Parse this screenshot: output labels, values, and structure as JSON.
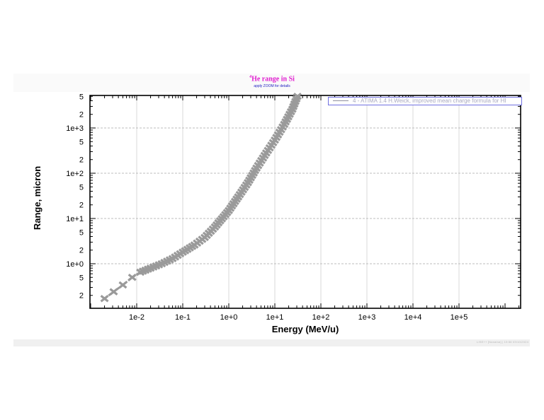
{
  "header": {
    "title_sup": "4",
    "title": "He range in Si",
    "subtitle": "apply ZOOM for details"
  },
  "footer": {
    "text": "LISE++ [Nanaina]  |  19:56 03/10/2024"
  },
  "legend": {
    "entries": [
      {
        "label": "4 - ATIMA 1.4 H.Weick, improved mean charge formula for HI",
        "color": "#9a9a9a"
      }
    ]
  },
  "axes": {
    "xlabel": "Energy (MeV/u)",
    "ylabel": "Range, micron",
    "x_ticks": [
      "1e-2",
      "1e-1",
      "1e+0",
      "1e+1",
      "1e+2",
      "1e+3",
      "1e+4",
      "1e+5"
    ],
    "y_ticks": [
      {
        "label": "5",
        "value": 5000
      },
      {
        "label": "2",
        "value": 2000
      },
      {
        "label": "1e+3",
        "value": 1000
      },
      {
        "label": "5",
        "value": 500
      },
      {
        "label": "2",
        "value": 200
      },
      {
        "label": "1e+2",
        "value": 100
      },
      {
        "label": "5",
        "value": 50
      },
      {
        "label": "2",
        "value": 20
      },
      {
        "label": "1e+1",
        "value": 10
      },
      {
        "label": "5",
        "value": 5
      },
      {
        "label": "2",
        "value": 2
      },
      {
        "label": "1e+0",
        "value": 1
      },
      {
        "label": "5",
        "value": 0.5
      },
      {
        "label": "2",
        "value": 0.2
      }
    ]
  },
  "chart_data": {
    "type": "line",
    "title": "4He range in Si",
    "subtitle": "apply ZOOM for details",
    "xlabel": "Energy (MeV/u)",
    "ylabel": "Range, micron",
    "xscale": "log",
    "yscale": "log",
    "xlim": [
      0.001,
      2000000
    ],
    "ylim": [
      0.1,
      5500
    ],
    "grid": true,
    "legend_position": "top-right",
    "series": [
      {
        "name": "4 - ATIMA 1.4 H.Weick, improved mean charge formula for HI",
        "color": "#9a9a9a",
        "marker": "x",
        "x": [
          0.002,
          0.005,
          0.008,
          0.012,
          0.02,
          0.035,
          0.06,
          0.1,
          0.18,
          0.3,
          0.5,
          1.0,
          1.6,
          2.6,
          4.0,
          6.5,
          10,
          16,
          24,
          31
        ],
        "y": [
          0.17,
          0.34,
          0.5,
          0.65,
          0.8,
          1.0,
          1.3,
          1.8,
          2.6,
          3.8,
          6.5,
          15,
          30,
          62,
          130,
          280,
          540,
          1200,
          2600,
          5000
        ]
      }
    ]
  }
}
